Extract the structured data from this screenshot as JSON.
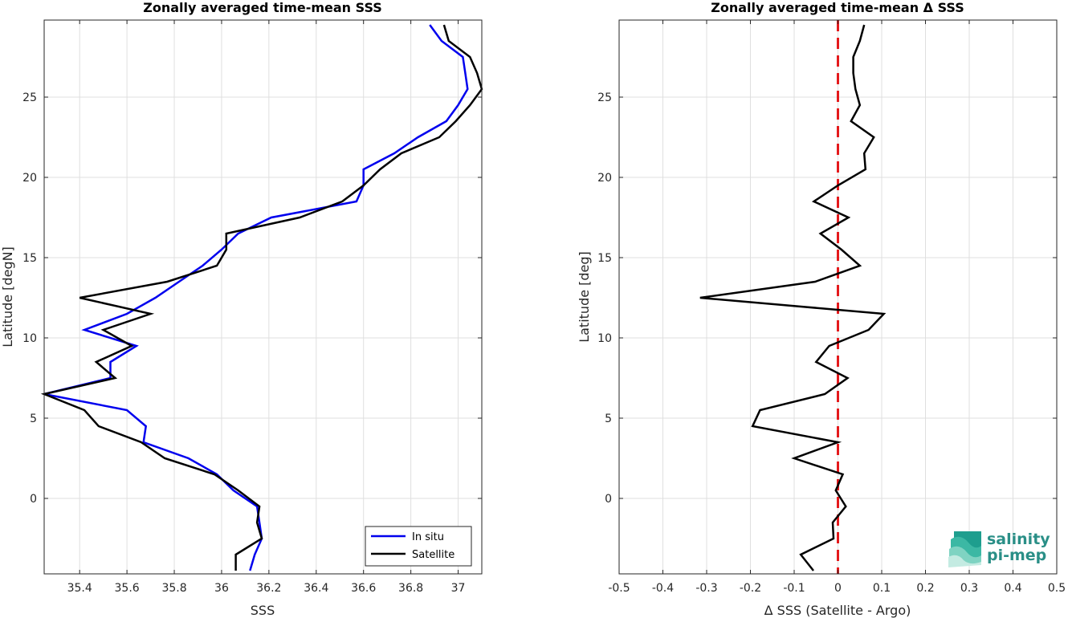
{
  "chart_data": [
    {
      "type": "line",
      "title": "Zonally averaged time-mean SSS",
      "xlabel": "SSS",
      "ylabel": "Latitude [degN]",
      "xlim": [
        35.25,
        37.1
      ],
      "ylim": [
        -4.7,
        29.8
      ],
      "xticks": [
        35.4,
        35.6,
        35.8,
        36,
        36.2,
        36.4,
        36.6,
        36.8,
        37
      ],
      "xtick_labels": [
        "35.4",
        "35.6",
        "35.8",
        "36",
        "36.2",
        "36.4",
        "36.6",
        "36.8",
        "37"
      ],
      "yticks": [
        0,
        5,
        10,
        15,
        20,
        25
      ],
      "ytick_labels": [
        "0",
        "5",
        "10",
        "15",
        "20",
        "25"
      ],
      "grid": true,
      "legend": {
        "placement": "bottom-right"
      },
      "series": [
        {
          "name": "In situ",
          "color": "#0000ee",
          "points": [
            [
              36.12,
              -4.5
            ],
            [
              36.14,
              -3.5
            ],
            [
              36.17,
              -2.5
            ],
            [
              36.16,
              -1.5
            ],
            [
              36.15,
              -0.5
            ],
            [
              36.05,
              0.5
            ],
            [
              35.98,
              1.5
            ],
            [
              35.86,
              2.5
            ],
            [
              35.67,
              3.5
            ],
            [
              35.68,
              4.5
            ],
            [
              35.6,
              5.5
            ],
            [
              35.25,
              6.5
            ],
            [
              35.53,
              7.5
            ],
            [
              35.53,
              8.5
            ],
            [
              35.64,
              9.5
            ],
            [
              35.42,
              10.5
            ],
            [
              35.6,
              11.5
            ],
            [
              35.72,
              12.5
            ],
            [
              35.82,
              13.5
            ],
            [
              35.92,
              14.5
            ],
            [
              36.0,
              15.5
            ],
            [
              36.07,
              16.5
            ],
            [
              36.21,
              17.5
            ],
            [
              36.57,
              18.5
            ],
            [
              36.6,
              19.5
            ],
            [
              36.6,
              20.5
            ],
            [
              36.73,
              21.5
            ],
            [
              36.83,
              22.5
            ],
            [
              36.95,
              23.5
            ],
            [
              37.0,
              24.5
            ],
            [
              37.04,
              25.5
            ],
            [
              37.03,
              26.5
            ],
            [
              37.02,
              27.5
            ],
            [
              36.93,
              28.5
            ],
            [
              36.88,
              29.5
            ]
          ]
        },
        {
          "name": "Satellite",
          "color": "#000000",
          "points": [
            [
              36.06,
              -4.5
            ],
            [
              36.06,
              -3.5
            ],
            [
              36.17,
              -2.5
            ],
            [
              36.15,
              -1.5
            ],
            [
              36.16,
              -0.5
            ],
            [
              36.07,
              0.5
            ],
            [
              35.97,
              1.5
            ],
            [
              35.76,
              2.5
            ],
            [
              35.66,
              3.5
            ],
            [
              35.48,
              4.5
            ],
            [
              35.42,
              5.5
            ],
            [
              35.25,
              6.5
            ],
            [
              35.55,
              7.5
            ],
            [
              35.47,
              8.5
            ],
            [
              35.62,
              9.5
            ],
            [
              35.5,
              10.5
            ],
            [
              35.7,
              11.5
            ],
            [
              35.4,
              12.5
            ],
            [
              35.77,
              13.5
            ],
            [
              35.98,
              14.5
            ],
            [
              36.02,
              15.5
            ],
            [
              36.02,
              16.5
            ],
            [
              36.33,
              17.5
            ],
            [
              36.51,
              18.5
            ],
            [
              36.6,
              19.5
            ],
            [
              36.67,
              20.5
            ],
            [
              36.76,
              21.5
            ],
            [
              36.92,
              22.5
            ],
            [
              36.99,
              23.5
            ],
            [
              37.05,
              24.5
            ],
            [
              37.1,
              25.5
            ],
            [
              37.08,
              26.5
            ],
            [
              37.05,
              27.5
            ],
            [
              36.96,
              28.5
            ],
            [
              36.94,
              29.5
            ]
          ]
        }
      ]
    },
    {
      "type": "line",
      "title": "Zonally averaged time-mean Δ SSS",
      "xlabel": "Δ SSS (Satellite - Argo)",
      "ylabel": "Latitude [deg]",
      "xlim": [
        -0.5,
        0.5
      ],
      "ylim": [
        -4.7,
        29.8
      ],
      "xticks": [
        -0.5,
        -0.4,
        -0.3,
        -0.2,
        -0.1,
        0,
        0.1,
        0.2,
        0.3,
        0.4,
        0.5
      ],
      "xtick_labels": [
        "-0.5",
        "-0.4",
        "-0.3",
        "-0.2",
        "-0.1",
        "0",
        "0.1",
        "0.2",
        "0.3",
        "0.4",
        "0.5"
      ],
      "yticks": [
        0,
        5,
        10,
        15,
        20,
        25
      ],
      "ytick_labels": [
        "0",
        "5",
        "10",
        "15",
        "20",
        "25"
      ],
      "grid": true,
      "reference_line": {
        "x": 0,
        "color": "#e41a1c",
        "style": "dashed"
      },
      "series": [
        {
          "color": "#000000",
          "points": [
            [
              -0.056,
              -4.5
            ],
            [
              -0.085,
              -3.5
            ],
            [
              -0.01,
              -2.5
            ],
            [
              -0.012,
              -1.5
            ],
            [
              0.018,
              -0.5
            ],
            [
              -0.005,
              0.5
            ],
            [
              0.011,
              1.5
            ],
            [
              -0.1,
              2.5
            ],
            [
              0.0,
              3.5
            ],
            [
              -0.195,
              4.5
            ],
            [
              -0.178,
              5.5
            ],
            [
              -0.03,
              6.5
            ],
            [
              0.022,
              7.5
            ],
            [
              -0.05,
              8.5
            ],
            [
              -0.02,
              9.5
            ],
            [
              0.07,
              10.5
            ],
            [
              0.105,
              11.5
            ],
            [
              -0.315,
              12.5
            ],
            [
              -0.052,
              13.5
            ],
            [
              0.05,
              14.5
            ],
            [
              0.008,
              15.5
            ],
            [
              -0.04,
              16.5
            ],
            [
              0.024,
              17.5
            ],
            [
              -0.055,
              18.5
            ],
            [
              0.0,
              19.5
            ],
            [
              0.063,
              20.5
            ],
            [
              0.06,
              21.5
            ],
            [
              0.082,
              22.5
            ],
            [
              0.03,
              23.5
            ],
            [
              0.05,
              24.5
            ],
            [
              0.04,
              25.5
            ],
            [
              0.035,
              26.5
            ],
            [
              0.035,
              27.5
            ],
            [
              0.05,
              28.5
            ],
            [
              0.06,
              29.5
            ]
          ]
        }
      ]
    }
  ],
  "logo": {
    "line1": "salinity",
    "line2": "pi-mep",
    "color": "#2a8f87"
  }
}
